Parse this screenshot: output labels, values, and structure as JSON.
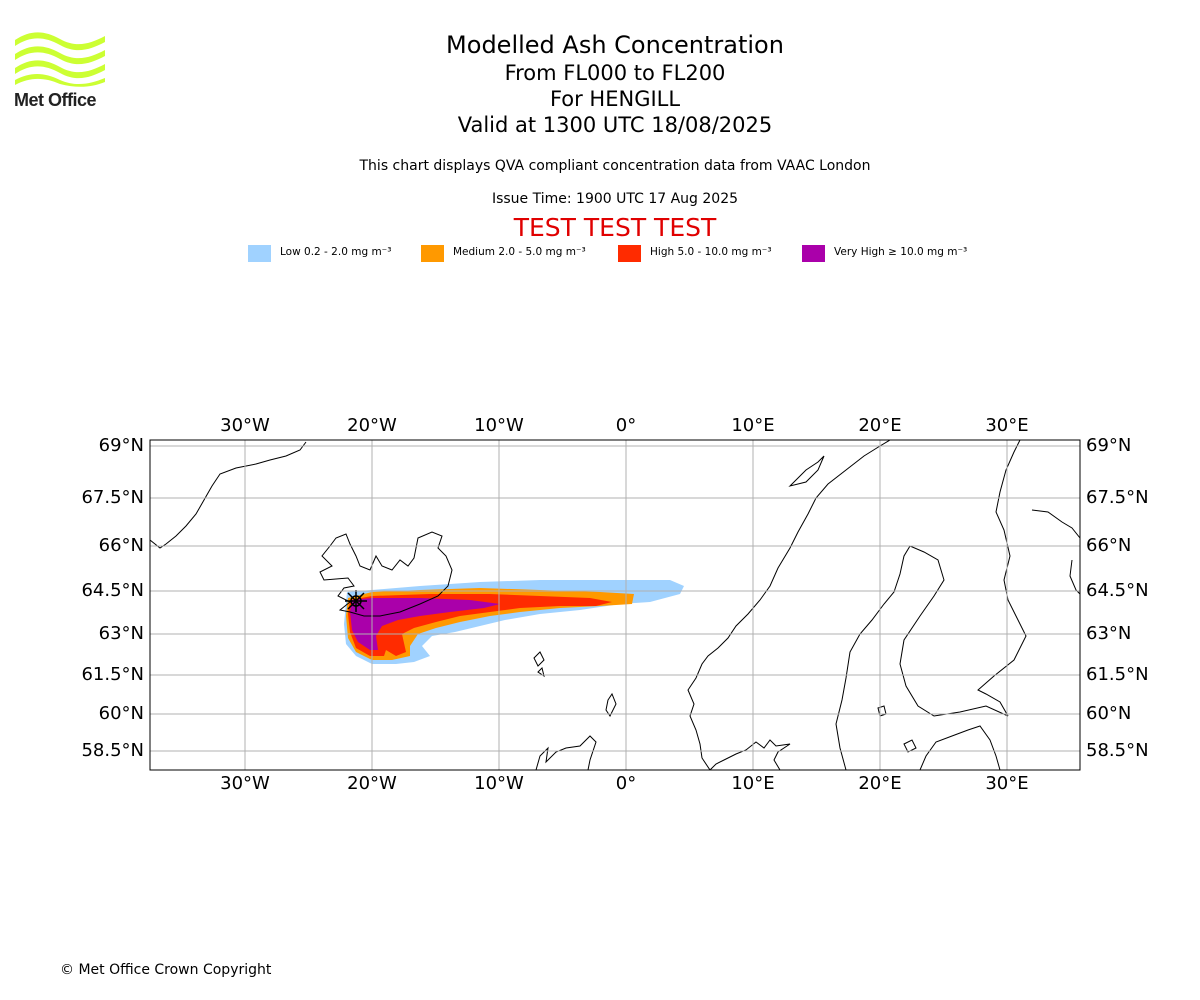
{
  "header": {
    "logo_text": "Met Office",
    "title": "Modelled Ash Concentration",
    "flight_levels": "From FL000 to FL200",
    "volcano": "For HENGILL",
    "valid_time": "Valid at 1300 UTC 18/08/2025",
    "description": "This chart displays QVA compliant concentration data from VAAC London",
    "issue_time": "Issue Time: 1900 UTC 17 Aug 2025",
    "test_banner": "TEST TEST TEST"
  },
  "legend": [
    {
      "label": "Low 0.2 - 2.0 mg m⁻³",
      "color": "#a0d2ff"
    },
    {
      "label": "Medium 2.0 - 5.0 mg m⁻³",
      "color": "#ff9900"
    },
    {
      "label": "High 5.0 - 10.0 mg m⁻³",
      "color": "#ff2b00"
    },
    {
      "label": "Very High ≥ 10.0 mg m⁻³",
      "color": "#aa00aa"
    }
  ],
  "map": {
    "lon_labels": [
      "30°W",
      "20°W",
      "10°W",
      "0°",
      "10°E",
      "20°E",
      "30°E"
    ],
    "lat_labels": [
      "69°N",
      "67.5°N",
      "66°N",
      "64.5°N",
      "63°N",
      "61.5°N",
      "60°N",
      "58.5°N"
    ],
    "extent": {
      "lon_min": -37.5,
      "lon_max": 35.8,
      "lat_min": 58.0,
      "lat_max": 69.2
    },
    "volcano_marker": {
      "name": "HENGILL",
      "lon": -21.3,
      "lat": 64.1
    },
    "colors": {
      "low": "#a0d2ff",
      "medium": "#ff9900",
      "high": "#ff2b00",
      "very_high": "#aa00aa",
      "grid": "#b0b0b0",
      "coast": "#000000"
    }
  },
  "footer": {
    "copyright": "© Met Office Crown Copyright"
  }
}
